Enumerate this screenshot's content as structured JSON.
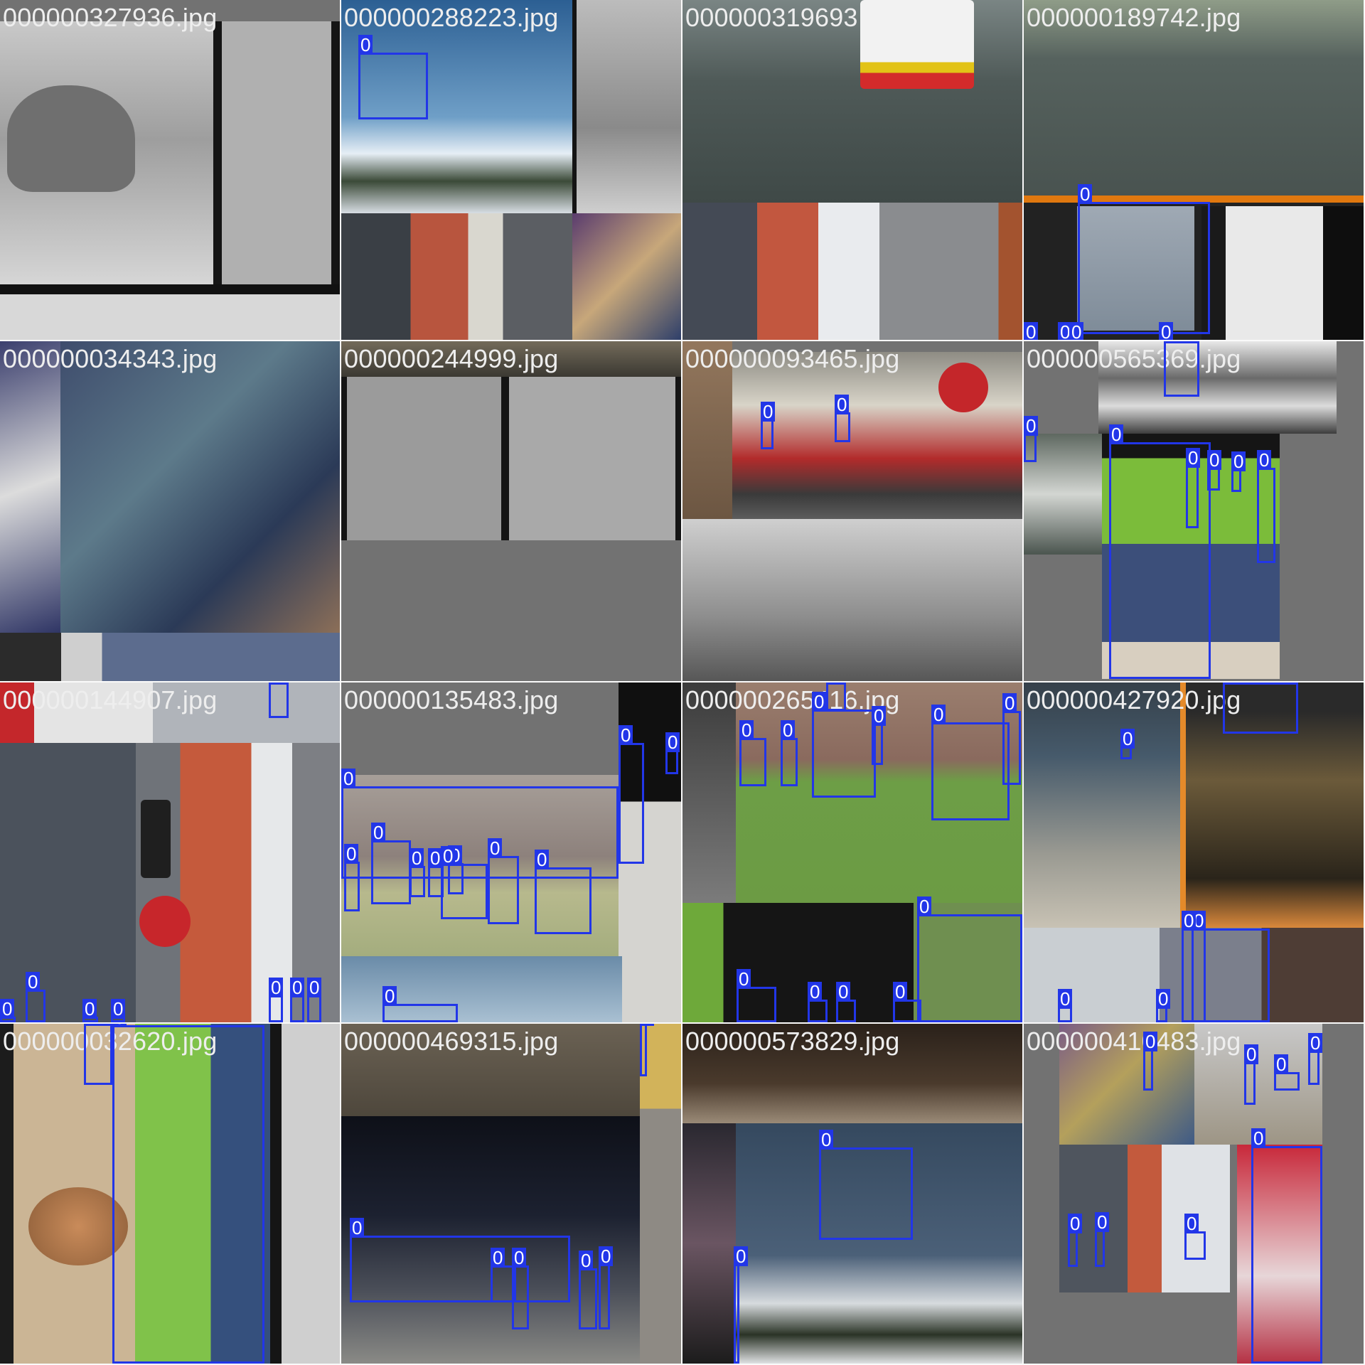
{
  "mosaic": {
    "tiles": [
      {
        "label": "000000327936.jpg",
        "boxes": []
      },
      {
        "label": "000000288223.jpg",
        "boxes": [
          {
            "cls": "0"
          }
        ]
      },
      {
        "label": "000000319693",
        "boxes": []
      },
      {
        "label": "000000189742.jpg",
        "boxes": [
          {
            "cls": "0"
          },
          {
            "cls": "0"
          },
          {
            "cls": "0"
          },
          {
            "cls": "0"
          },
          {
            "cls": "0"
          }
        ]
      },
      {
        "label": "000000034343.jpg",
        "boxes": []
      },
      {
        "label": "000000244999.jpg",
        "boxes": []
      },
      {
        "label": "000000093465.jpg",
        "boxes": [
          {
            "cls": "0"
          },
          {
            "cls": "0"
          }
        ]
      },
      {
        "label": "000000565369.jpg",
        "boxes": [
          {
            "cls": "0"
          },
          {
            "cls": "0"
          },
          {
            "cls": "0"
          },
          {
            "cls": "0"
          },
          {
            "cls": "0"
          },
          {
            "cls": "0"
          },
          {
            "cls": "0"
          }
        ]
      },
      {
        "label": "000000144907.jpg",
        "boxes": [
          {
            "cls": "0"
          },
          {
            "cls": "0"
          },
          {
            "cls": "0"
          },
          {
            "cls": "0"
          },
          {
            "cls": "0"
          },
          {
            "cls": "0"
          },
          {
            "cls": "0"
          },
          {
            "cls": "0"
          }
        ]
      },
      {
        "label": "000000135483.jpg",
        "boxes": [
          {
            "cls": "0"
          },
          {
            "cls": "0"
          },
          {
            "cls": "0"
          },
          {
            "cls": "0"
          },
          {
            "cls": "0"
          },
          {
            "cls": "0"
          },
          {
            "cls": "0"
          },
          {
            "cls": "0"
          },
          {
            "cls": "0"
          },
          {
            "cls": "0"
          },
          {
            "cls": "0"
          },
          {
            "cls": "0"
          }
        ]
      },
      {
        "label": "000000265416.jpg",
        "boxes": [
          {
            "cls": "0"
          },
          {
            "cls": "0"
          },
          {
            "cls": "0"
          },
          {
            "cls": "0"
          },
          {
            "cls": "0"
          },
          {
            "cls": "0"
          },
          {
            "cls": "0"
          },
          {
            "cls": "0"
          },
          {
            "cls": "0"
          },
          {
            "cls": "0"
          },
          {
            "cls": "0"
          },
          {
            "cls": "0"
          }
        ]
      },
      {
        "label": "000000427920.jpg",
        "boxes": [
          {
            "cls": "0"
          },
          {
            "cls": "0"
          },
          {
            "cls": "0"
          },
          {
            "cls": "0"
          },
          {
            "cls": "0"
          },
          {
            "cls": "0"
          }
        ]
      },
      {
        "label": "000000032620.jpg",
        "boxes": [
          {
            "cls": "0"
          },
          {
            "cls": "0"
          }
        ]
      },
      {
        "label": "000000469315.jpg",
        "boxes": [
          {
            "cls": "0"
          },
          {
            "cls": "0"
          },
          {
            "cls": "0"
          },
          {
            "cls": "0"
          },
          {
            "cls": "0"
          },
          {
            "cls": "0"
          }
        ]
      },
      {
        "label": "000000573829.jpg",
        "boxes": [
          {
            "cls": "0"
          },
          {
            "cls": "0"
          }
        ]
      },
      {
        "label": "000000410483.jpg",
        "boxes": [
          {
            "cls": "0"
          },
          {
            "cls": "0"
          },
          {
            "cls": "0"
          },
          {
            "cls": "0"
          },
          {
            "cls": "0"
          },
          {
            "cls": "0"
          },
          {
            "cls": "0"
          },
          {
            "cls": "0"
          }
        ]
      }
    ]
  },
  "colors": {
    "box": "#2236e8",
    "label_text": "#eeeeee",
    "pad": "#727272"
  }
}
